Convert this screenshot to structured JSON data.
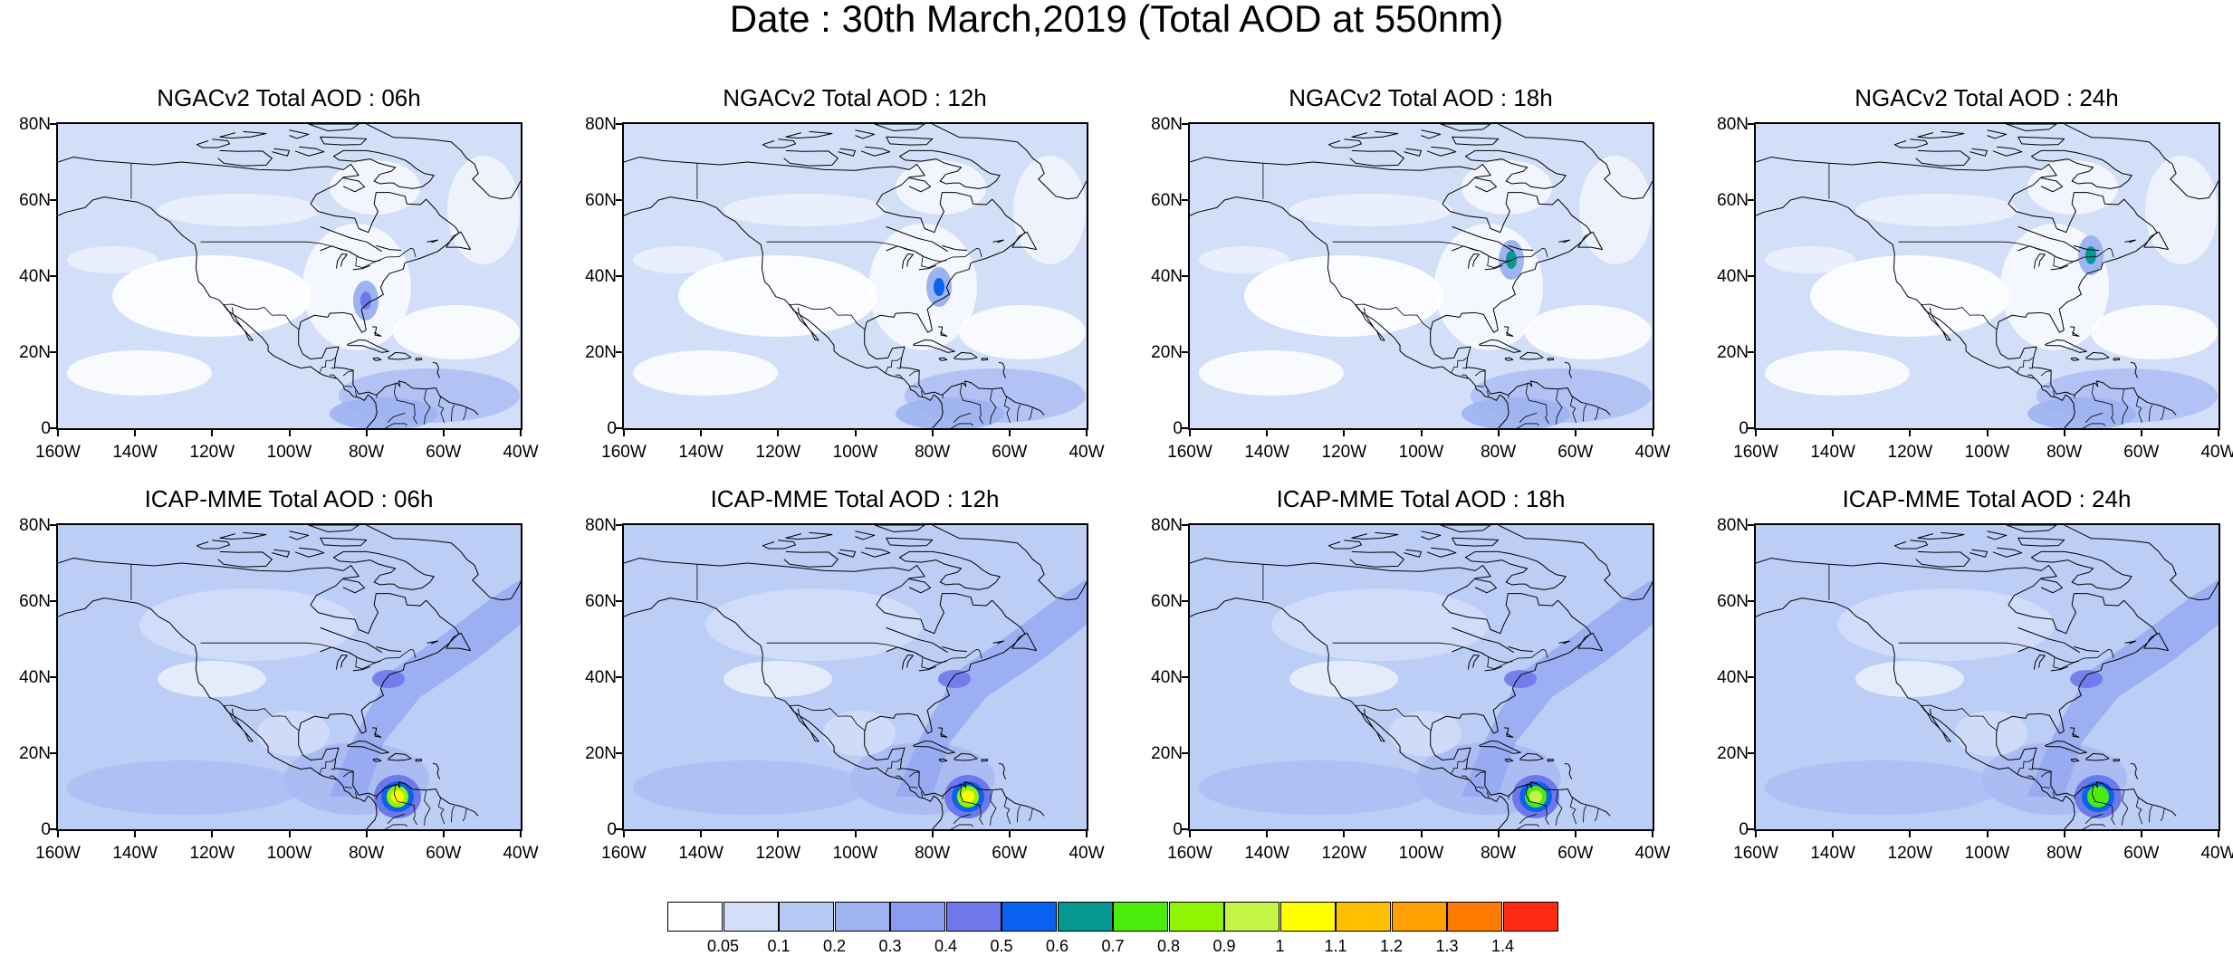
{
  "title": "Date : 30th March,2019 (Total AOD at 550nm)",
  "rows": [
    {
      "model": "NGACv2",
      "panels": [
        {
          "title": "NGACv2 Total AOD : 06h",
          "hour": "06h",
          "hotspot_level": 0.4
        },
        {
          "title": "NGACv2 Total AOD : 12h",
          "hour": "12h",
          "hotspot_level": 0.5
        },
        {
          "title": "NGACv2 Total AOD : 18h",
          "hour": "18h",
          "hotspot_level": 0.6
        },
        {
          "title": "NGACv2 Total AOD : 24h",
          "hour": "24h",
          "hotspot_level": 0.6
        }
      ]
    },
    {
      "model": "ICAP-MME",
      "panels": [
        {
          "title": "ICAP-MME Total AOD : 06h",
          "hour": "06h",
          "hotspot_level": 1.0
        },
        {
          "title": "ICAP-MME Total AOD : 12h",
          "hour": "12h",
          "hotspot_level": 1.0
        },
        {
          "title": "ICAP-MME Total AOD : 18h",
          "hour": "18h",
          "hotspot_level": 0.9
        },
        {
          "title": "ICAP-MME Total AOD : 24h",
          "hour": "24h",
          "hotspot_level": 0.7
        }
      ]
    }
  ],
  "map_extent": {
    "lon": [
      "160W",
      "40W"
    ],
    "lat": [
      "0",
      "80N"
    ]
  },
  "y_ticks": [
    "80N",
    "60N",
    "40N",
    "20N",
    "0"
  ],
  "x_ticks": [
    "160W",
    "140W",
    "120W",
    "100W",
    "80W",
    "60W",
    "40W"
  ],
  "colorbar": {
    "labels": [
      "0.05",
      "0.1",
      "0.2",
      "0.3",
      "0.4",
      "0.5",
      "0.6",
      "0.7",
      "0.8",
      "0.9",
      "1",
      "1.1",
      "1.2",
      "1.3",
      "1.4"
    ],
    "colors": [
      "#ffffff",
      "#d6e0fb",
      "#b8c9f6",
      "#9db3f2",
      "#8a9cf0",
      "#6e78ea",
      "#0a63f0",
      "#059890",
      "#4ceb0e",
      "#8ff500",
      "#c2f545",
      "#ffff00",
      "#ffc000",
      "#ffa000",
      "#ff7a00",
      "#ff2a14"
    ]
  },
  "map_colors": {
    "ocean_background": "#c9d6f8",
    "light_area": "#ffffff",
    "coastline": "#000000"
  }
}
